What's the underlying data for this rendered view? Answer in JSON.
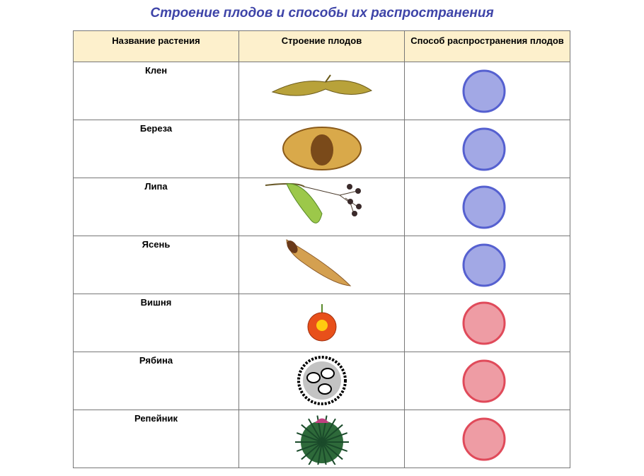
{
  "title": "Строение плодов и способы их распространения",
  "headers": [
    "Название растения",
    "Строение плодов",
    "Способ распространения плодов"
  ],
  "rows": [
    {
      "name": "Клен",
      "fruit": "maple-samara",
      "method_color": "#5560d0"
    },
    {
      "name": "Береза",
      "fruit": "birch-winged-nut",
      "method_color": "#5560d0"
    },
    {
      "name": "Липа",
      "fruit": "linden-bract-nutlets",
      "method_color": "#5560d0"
    },
    {
      "name": "Ясень",
      "fruit": "ash-samara",
      "method_color": "#5560d0"
    },
    {
      "name": "Вишня",
      "fruit": "cherry-drupe",
      "method_color": "#e04a5a"
    },
    {
      "name": "Рябина",
      "fruit": "rowan-berry-section",
      "method_color": "#e04a5a"
    },
    {
      "name": "Репейник",
      "fruit": "burdock-burr",
      "method_color": "#e04a5a"
    }
  ]
}
